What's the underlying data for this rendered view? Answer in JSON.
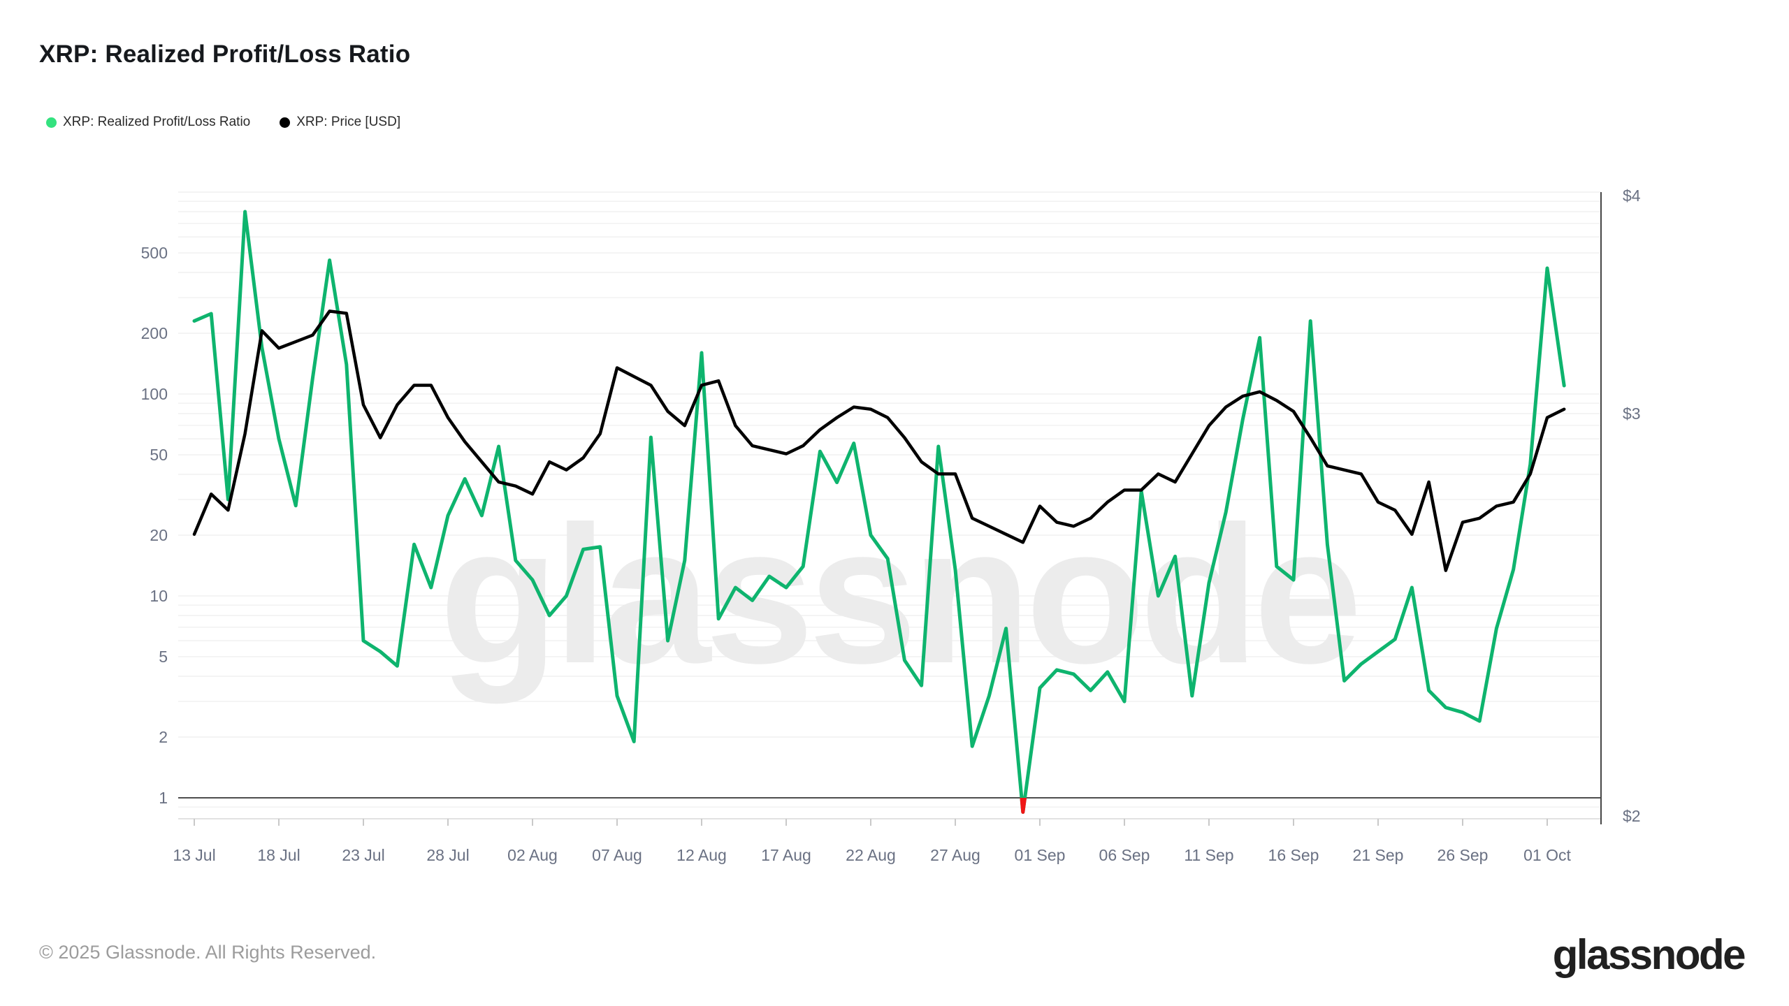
{
  "page": {
    "title": "XRP: Realized Profit/Loss Ratio"
  },
  "legend": [
    {
      "label": "XRP: Realized Profit/Loss Ratio",
      "dot_color": "#34e27f"
    },
    {
      "label": "XRP: Price [USD]",
      "dot_color": "#000000"
    }
  ],
  "watermark_text": "glassnode",
  "footer": {
    "copyright": "© 2025 Glassnode. All Rights Reserved.",
    "logo_text": "glassnode"
  },
  "chart_data": {
    "type": "line",
    "title": "XRP: Realized Profit/Loss Ratio",
    "x_tick_labels": [
      "13 Jul",
      "18 Jul",
      "23 Jul",
      "28 Jul",
      "02 Aug",
      "07 Aug",
      "12 Aug",
      "17 Aug",
      "22 Aug",
      "27 Aug",
      "01 Sep",
      "06 Sep",
      "11 Sep",
      "16 Sep",
      "21 Sep",
      "26 Sep",
      "01 Oct"
    ],
    "tick_every_days": 5,
    "points_per_day": 1,
    "left_axis": {
      "scale": "log",
      "tick_values": [
        1,
        2,
        5,
        10,
        20,
        50,
        100,
        200,
        500
      ],
      "unity_line_emphasized": true
    },
    "right_axis": {
      "tick_labels": [
        "$4",
        "$3",
        "$2"
      ],
      "tick_values": [
        4,
        3,
        2
      ]
    },
    "grid": "log-minor-horizontal",
    "legend_position": "top-left",
    "series": [
      {
        "name": "XRP: Realized Profit/Loss Ratio",
        "axis": "left",
        "color": "#0eb46e",
        "loss_color": "#f01616",
        "values": [
          230,
          250,
          30,
          800,
          170,
          60,
          28,
          120,
          460,
          140,
          6,
          5.3,
          4.5,
          18,
          11,
          25,
          38,
          25,
          55,
          15,
          12,
          8,
          10,
          17,
          17.5,
          3.2,
          1.9,
          61,
          6,
          15,
          160,
          7.7,
          11,
          9.5,
          12.5,
          11,
          14,
          52,
          36.5,
          57,
          20,
          15.3,
          4.8,
          3.6,
          55,
          13.5,
          1.8,
          3.2,
          6.9,
          0.85,
          3.5,
          4.3,
          4.1,
          3.4,
          4.2,
          3.0,
          33,
          10,
          15.7,
          3.2,
          11.6,
          26,
          75,
          190,
          14,
          12,
          230,
          18,
          3.8,
          4.6,
          5.3,
          6.1,
          11,
          3.4,
          2.8,
          2.65,
          2.4,
          6.9,
          13.5,
          45,
          420,
          110
        ]
      },
      {
        "name": "XRP: Price [USD]",
        "axis": "right",
        "color": "#000000",
        "values": [
          2.7,
          2.8,
          2.76,
          2.95,
          3.38,
          3.3,
          3.33,
          3.36,
          3.47,
          3.46,
          3.04,
          2.94,
          3.04,
          3.13,
          3.13,
          2.99,
          2.93,
          2.88,
          2.83,
          2.82,
          2.8,
          2.88,
          2.86,
          2.89,
          2.95,
          3.21,
          3.17,
          3.13,
          3.01,
          2.97,
          3.13,
          3.15,
          2.97,
          2.92,
          2.91,
          2.9,
          2.92,
          2.96,
          2.99,
          3.03,
          3.02,
          2.99,
          2.94,
          2.88,
          2.85,
          2.85,
          2.74,
          2.72,
          2.7,
          2.68,
          2.77,
          2.73,
          2.72,
          2.74,
          2.78,
          2.81,
          2.81,
          2.85,
          2.83,
          2.9,
          2.97,
          3.03,
          3.08,
          3.1,
          3.06,
          3.01,
          2.94,
          2.87,
          2.86,
          2.85,
          2.78,
          2.76,
          2.7,
          2.83,
          2.61,
          2.73,
          2.74,
          2.77,
          2.78,
          2.85,
          2.99,
          3.02
        ]
      }
    ]
  }
}
